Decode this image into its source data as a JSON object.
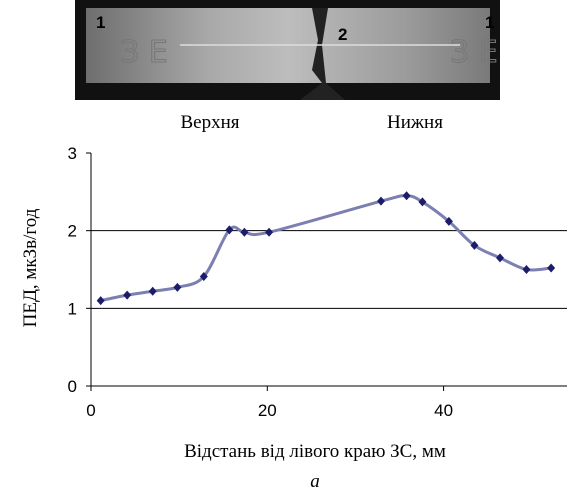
{
  "chart_data": {
    "type": "line",
    "photo_labels": [
      "1",
      "2",
      "1"
    ],
    "annotations": [
      "Верхня",
      "Нижня"
    ],
    "caption": "а",
    "x_label": "Відстань від лівого краю ЗС, мм",
    "y_label": "ПЕД, мкЗв/год",
    "xlim": [
      0,
      54
    ],
    "xticks": [
      0,
      20,
      40
    ],
    "ylim": [
      0,
      3
    ],
    "yticks": [
      0,
      1,
      2,
      3
    ],
    "grid": true,
    "series": [
      {
        "color": "#7b7fb2",
        "marker_color": "#1c1c6b",
        "x": [
          1.1,
          4.1,
          7,
          9.8,
          12.8,
          15.7,
          17.4,
          20.2,
          32.9,
          35.8,
          37.6,
          40.6,
          43.5,
          46.4,
          49.4,
          52.2
        ],
        "values": [
          1.1,
          1.17,
          1.22,
          1.27,
          1.41,
          2.01,
          1.98,
          1.98,
          2.38,
          2.45,
          2.37,
          2.12,
          1.81,
          1.65,
          1.5,
          1.52
        ]
      }
    ]
  }
}
